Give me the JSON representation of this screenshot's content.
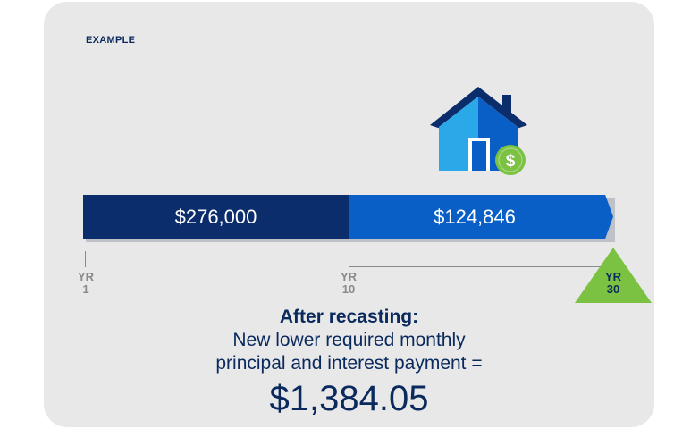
{
  "example_label": "EXAMPLE",
  "timeline": {
    "segments": [
      {
        "value": "$276,000",
        "color": "#0b2d6b"
      },
      {
        "value": "$124,846",
        "color": "#0a5fc7"
      }
    ],
    "ticks": [
      {
        "line1": "YR",
        "line2": "1"
      },
      {
        "line1": "YR",
        "line2": "10"
      },
      {
        "line1": "YR",
        "line2": "30"
      }
    ]
  },
  "summary": {
    "heading": "After recasting:",
    "line1": "New lower required monthly",
    "line2": "principal and interest payment =",
    "amount": "$1,384.05"
  },
  "icons": [
    "house-icon",
    "dollar-coin-icon",
    "year-30-triangle"
  ],
  "colors": {
    "navy": "#0b2d6b",
    "blue": "#0a5fc7",
    "green": "#7cc242",
    "text": "#0a2a5e"
  }
}
